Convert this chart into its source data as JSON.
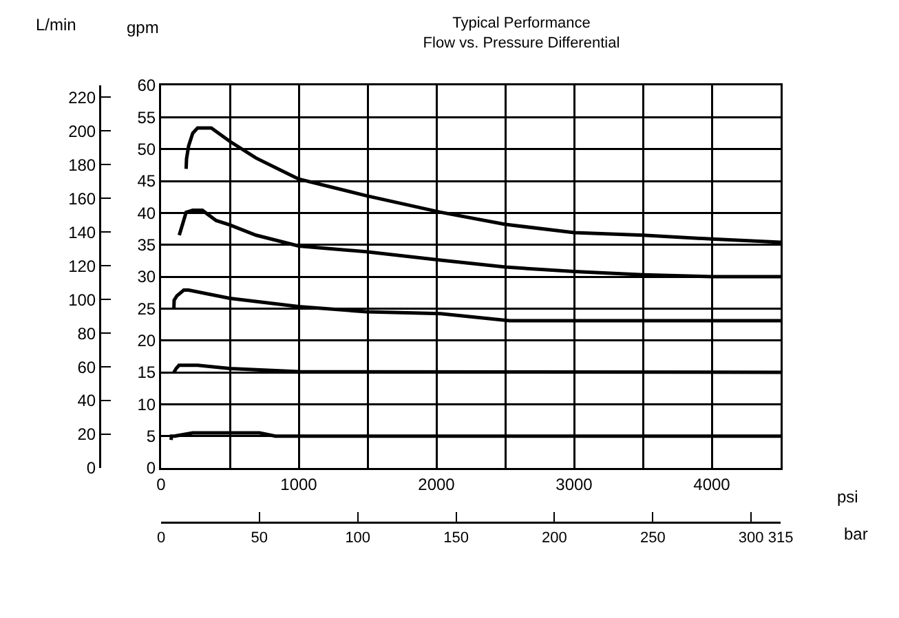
{
  "chart_data": {
    "type": "line",
    "title": "Typical Performance\nFlow vs. Pressure Differential",
    "xlabel": "psi",
    "x2label": "bar",
    "ylabel": "gpm",
    "y2label": "L/min",
    "xlim": [
      0,
      4500
    ],
    "xticks": [
      0,
      {
        "value": 500,
        "label": null
      },
      1000,
      {
        "value": 1500,
        "label": null
      },
      2000,
      {
        "value": 2500,
        "label": null
      },
      3000,
      {
        "value": 3500,
        "label": null
      },
      4000,
      {
        "value": 4500,
        "label": null
      }
    ],
    "x2lim": [
      0,
      315
    ],
    "x2ticks": [
      0,
      50,
      100,
      150,
      200,
      250,
      300,
      315
    ],
    "ylim": [
      0,
      60
    ],
    "yticks": [
      0,
      5,
      10,
      15,
      20,
      25,
      30,
      35,
      40,
      45,
      50,
      55,
      60
    ],
    "y2lim": [
      0,
      227.1
    ],
    "y2ticks": [
      0,
      20,
      40,
      60,
      80,
      100,
      120,
      140,
      160,
      180,
      200,
      220
    ],
    "grid": true,
    "marker": "none",
    "line_style": "solid",
    "series": [
      {
        "color": "#000000",
        "x": [
          182,
          185,
          200,
          230,
          265,
          365,
          500,
          690,
          1000,
          1490,
          2030,
          2500,
          3000,
          3500,
          4000,
          4500
        ],
        "values": [
          46.9,
          48.5,
          50.5,
          52.5,
          53.3,
          53.3,
          51.2,
          48.6,
          45.3,
          42.7,
          40.1,
          38.2,
          36.9,
          36.5,
          35.9,
          35.4
        ]
      },
      {
        "color": "#000000",
        "x": [
          132,
          160,
          182,
          230,
          300,
          400,
          500,
          690,
          1000,
          1490,
          2030,
          2500,
          3000,
          3500,
          4000,
          4500
        ],
        "values": [
          36.5,
          38.5,
          40.1,
          40.4,
          40.4,
          38.8,
          38.1,
          36.5,
          34.8,
          33.9,
          32.6,
          31.5,
          30.8,
          30.3,
          30.0,
          30.0
        ]
      },
      {
        "color": "#000000",
        "x": [
          93,
          95,
          115,
          165,
          200,
          500,
          1000,
          1490,
          2030,
          2530,
          3930,
          4500
        ],
        "values": [
          25,
          26.3,
          27,
          27.9,
          27.9,
          26.6,
          25.3,
          24.5,
          24.2,
          23.1,
          23.1,
          23.1
        ]
      },
      {
        "color": "#000000",
        "x": [
          93,
          110,
          130,
          265,
          500,
          1000,
          4500
        ],
        "values": [
          15,
          15.6,
          16.1,
          16.1,
          15.6,
          15.1,
          15
        ]
      },
      {
        "color": "#000000",
        "x": [
          73,
          75,
          100,
          230,
          715,
          830,
          4500
        ],
        "values": [
          4.4,
          5,
          5,
          5.5,
          5.5,
          5,
          5
        ]
      }
    ]
  }
}
